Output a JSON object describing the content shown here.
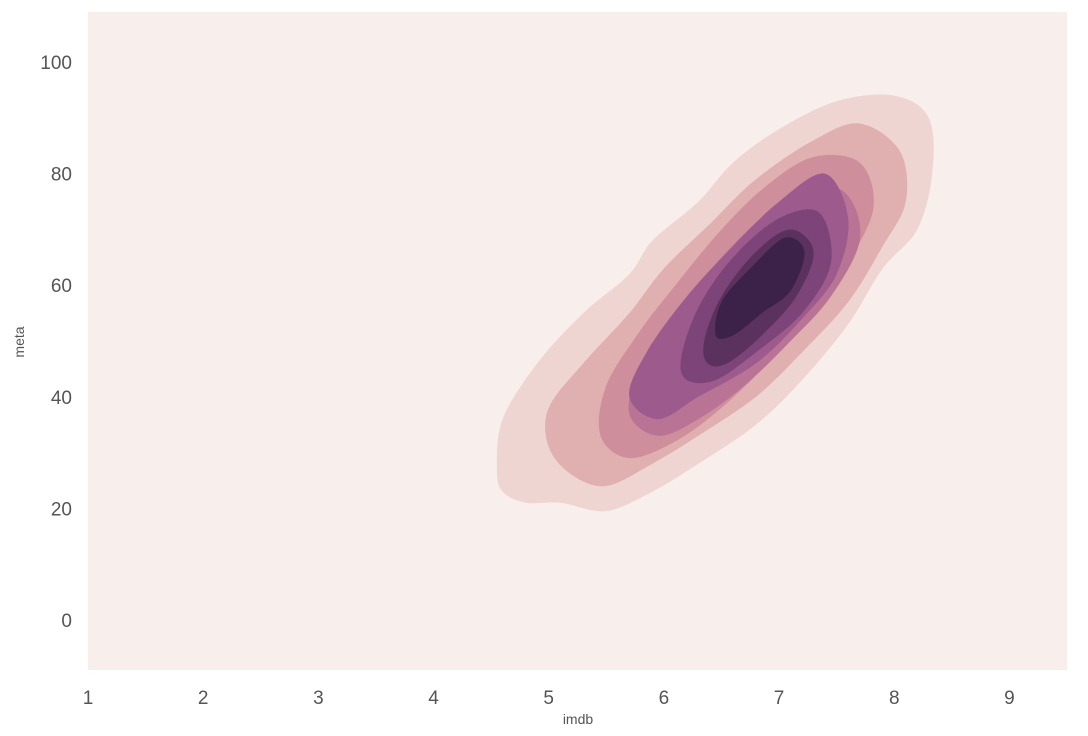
{
  "chart_data": {
    "type": "kde-contour",
    "title": "",
    "xlabel": "imdb",
    "ylabel": "meta",
    "xlim": [
      1,
      9.5
    ],
    "ylim": [
      -9,
      109
    ],
    "xticks": [
      1,
      2,
      3,
      4,
      5,
      6,
      7,
      8,
      9
    ],
    "yticks": [
      0,
      20,
      40,
      60,
      80,
      100
    ],
    "grid": false,
    "legend": "none",
    "colors": {
      "background": "#f8eeec",
      "levels": [
        "#efd5d2",
        "#e0afb0",
        "#cf8e9c",
        "#b87395",
        "#9d5a8c",
        "#7c4478",
        "#5b315e",
        "#3c2148"
      ]
    },
    "levels": [
      {
        "level": 1,
        "points": [
          [
            4.55,
            27
          ],
          [
            4.6,
            36
          ],
          [
            4.9,
            46
          ],
          [
            5.3,
            55
          ],
          [
            5.7,
            62
          ],
          [
            5.9,
            68
          ],
          [
            6.3,
            75
          ],
          [
            6.6,
            82
          ],
          [
            7.0,
            88
          ],
          [
            7.5,
            93
          ],
          [
            8.0,
            94
          ],
          [
            8.3,
            90
          ],
          [
            8.33,
            80
          ],
          [
            8.2,
            70
          ],
          [
            7.9,
            63
          ],
          [
            7.6,
            53
          ],
          [
            7.2,
            43
          ],
          [
            6.8,
            35
          ],
          [
            6.3,
            28
          ],
          [
            5.9,
            23
          ],
          [
            5.5,
            19.5
          ],
          [
            5.1,
            21
          ],
          [
            4.8,
            21
          ],
          [
            4.6,
            23
          ]
        ]
      },
      {
        "level": 2,
        "points": [
          [
            5.0,
            31
          ],
          [
            5.0,
            38
          ],
          [
            5.3,
            46
          ],
          [
            5.7,
            55
          ],
          [
            6.0,
            63
          ],
          [
            6.4,
            71
          ],
          [
            6.8,
            79
          ],
          [
            7.3,
            86
          ],
          [
            7.7,
            89
          ],
          [
            8.05,
            84
          ],
          [
            8.1,
            75
          ],
          [
            7.9,
            67
          ],
          [
            7.6,
            57
          ],
          [
            7.2,
            48
          ],
          [
            6.8,
            40
          ],
          [
            6.3,
            33
          ],
          [
            5.9,
            28
          ],
          [
            5.5,
            24
          ],
          [
            5.2,
            26
          ]
        ]
      },
      {
        "level": 3,
        "points": [
          [
            5.45,
            33
          ],
          [
            5.5,
            42
          ],
          [
            5.8,
            52
          ],
          [
            6.1,
            60
          ],
          [
            6.5,
            70
          ],
          [
            6.9,
            78
          ],
          [
            7.3,
            83
          ],
          [
            7.7,
            82
          ],
          [
            7.82,
            74
          ],
          [
            7.6,
            64
          ],
          [
            7.3,
            55
          ],
          [
            6.9,
            46
          ],
          [
            6.5,
            38
          ],
          [
            6.1,
            32
          ],
          [
            5.7,
            29
          ]
        ]
      },
      {
        "level": 4,
        "points": [
          [
            5.7,
            37
          ],
          [
            5.8,
            46
          ],
          [
            6.1,
            55
          ],
          [
            6.5,
            65
          ],
          [
            6.9,
            73
          ],
          [
            7.3,
            78
          ],
          [
            7.6,
            76
          ],
          [
            7.7,
            68
          ],
          [
            7.45,
            58
          ],
          [
            7.1,
            50
          ],
          [
            6.7,
            42
          ],
          [
            6.3,
            36
          ],
          [
            5.95,
            33
          ]
        ]
      },
      {
        "level": 5,
        "points": [
          [
            5.7,
            40
          ],
          [
            5.85,
            48
          ],
          [
            6.2,
            58
          ],
          [
            6.6,
            67
          ],
          [
            7.0,
            75
          ],
          [
            7.4,
            80
          ],
          [
            7.6,
            72
          ],
          [
            7.5,
            62
          ],
          [
            7.2,
            54
          ],
          [
            6.8,
            46
          ],
          [
            6.3,
            40
          ],
          [
            5.95,
            36
          ]
        ]
      },
      {
        "level": 6,
        "points": [
          [
            6.15,
            47
          ],
          [
            6.3,
            56
          ],
          [
            6.6,
            65
          ],
          [
            7.0,
            72
          ],
          [
            7.35,
            73
          ],
          [
            7.45,
            64
          ],
          [
            7.2,
            55
          ],
          [
            6.8,
            48
          ],
          [
            6.45,
            43
          ],
          [
            6.2,
            43
          ]
        ]
      },
      {
        "level": 7,
        "points": [
          [
            6.35,
            50
          ],
          [
            6.5,
            58
          ],
          [
            6.8,
            66
          ],
          [
            7.1,
            70
          ],
          [
            7.3,
            66
          ],
          [
            7.15,
            58
          ],
          [
            6.85,
            51
          ],
          [
            6.55,
            46
          ],
          [
            6.38,
            46
          ]
        ]
      },
      {
        "level": 8,
        "points": [
          [
            6.45,
            51
          ],
          [
            6.5,
            57
          ],
          [
            6.75,
            63
          ],
          [
            7.05,
            68.5
          ],
          [
            7.22,
            66
          ],
          [
            7.1,
            59
          ],
          [
            6.85,
            55
          ],
          [
            6.6,
            51
          ]
        ]
      }
    ]
  }
}
